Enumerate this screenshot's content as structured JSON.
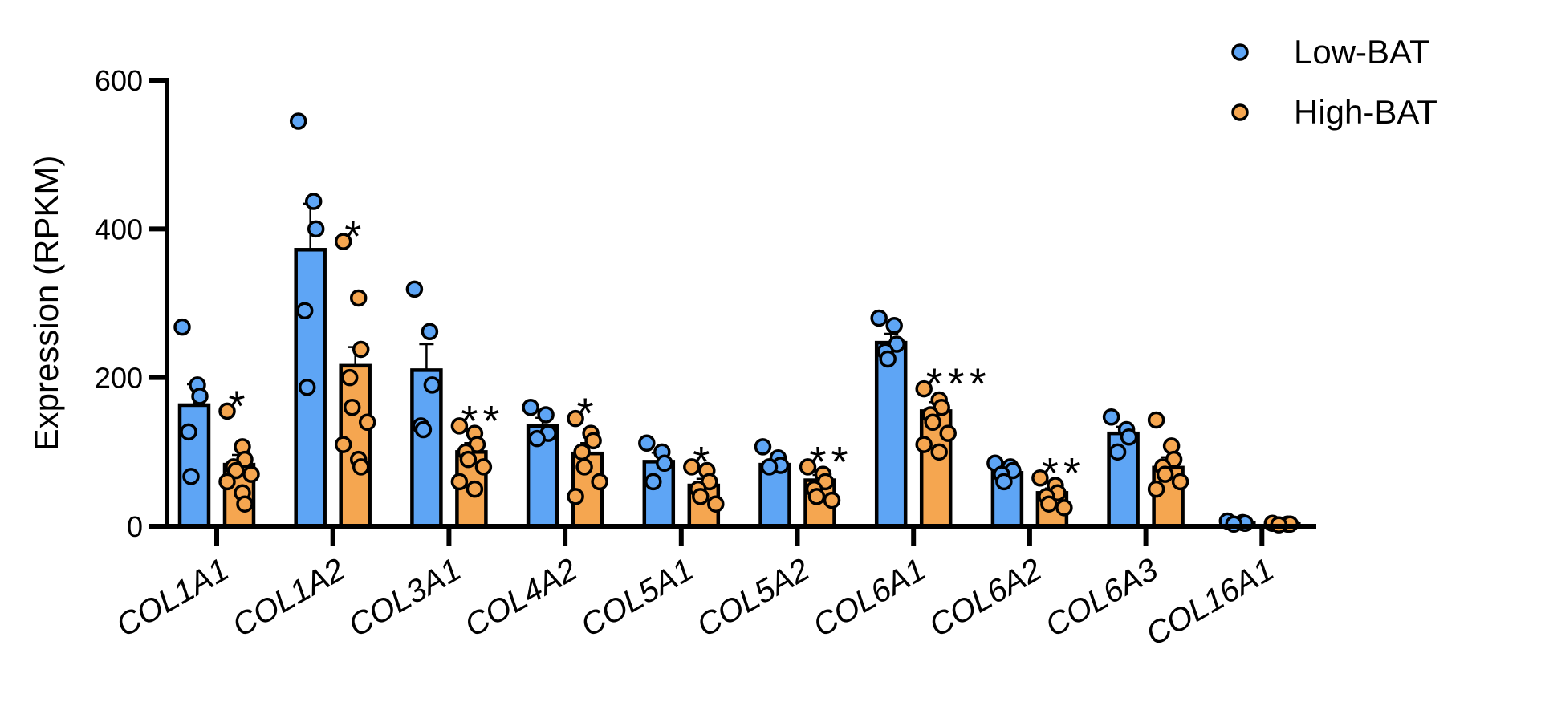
{
  "chart_data": {
    "type": "bar",
    "title": "",
    "xlabel": "",
    "ylabel": "Expression (RPKM)",
    "ylim": [
      0,
      600
    ],
    "yticks": [
      0,
      200,
      400,
      600
    ],
    "categories": [
      "COL1A1",
      "COL1A2",
      "COL3A1",
      "COL4A2",
      "COL5A1",
      "COL5A2",
      "COL6A1",
      "COL6A2",
      "COL6A3",
      "COL16A1"
    ],
    "series": [
      {
        "name": "Low-BAT",
        "color": "#5ea5f5",
        "values": [
          163,
          372,
          210,
          135,
          87,
          83,
          247,
          72,
          125,
          5
        ],
        "errors": [
          28,
          62,
          35,
          11,
          12,
          7,
          12,
          6,
          9,
          1
        ],
        "points": [
          [
            268,
            190,
            175,
            127,
            67
          ],
          [
            545,
            437,
            400,
            290,
            187
          ],
          [
            319,
            262,
            190,
            135,
            130
          ],
          [
            160,
            150,
            125,
            118
          ],
          [
            112,
            100,
            85,
            60
          ],
          [
            107,
            92,
            82,
            80
          ],
          [
            280,
            270,
            245,
            235,
            225
          ],
          [
            85,
            80,
            75,
            70,
            60
          ],
          [
            147,
            130,
            120,
            100
          ],
          [
            7,
            5,
            4,
            3
          ]
        ]
      },
      {
        "name": "High-BAT",
        "color": "#f5a650",
        "values": [
          83,
          216,
          100,
          98,
          55,
          62,
          155,
          45,
          79,
          3
        ],
        "errors": [
          13,
          25,
          12,
          14,
          9,
          7,
          12,
          6,
          14,
          1
        ],
        "points": [
          [
            155,
            107,
            90,
            80,
            75,
            70,
            60,
            45,
            30
          ],
          [
            383,
            307,
            238,
            200,
            160,
            140,
            110,
            90,
            80
          ],
          [
            135,
            125,
            110,
            100,
            90,
            80,
            60,
            50
          ],
          [
            145,
            125,
            115,
            100,
            80,
            60,
            40
          ],
          [
            80,
            75,
            60,
            50,
            40,
            30
          ],
          [
            80,
            70,
            60,
            50,
            40,
            35
          ],
          [
            185,
            170,
            160,
            150,
            140,
            125,
            110,
            100
          ],
          [
            65,
            55,
            45,
            40,
            30,
            25
          ],
          [
            143,
            108,
            90,
            80,
            70,
            60,
            50
          ],
          [
            4,
            3,
            3,
            2
          ]
        ]
      }
    ],
    "significance": [
      "*",
      "*",
      "**",
      "*",
      "*",
      "**",
      "***",
      "**",
      "",
      ""
    ],
    "legend": "top-right"
  }
}
